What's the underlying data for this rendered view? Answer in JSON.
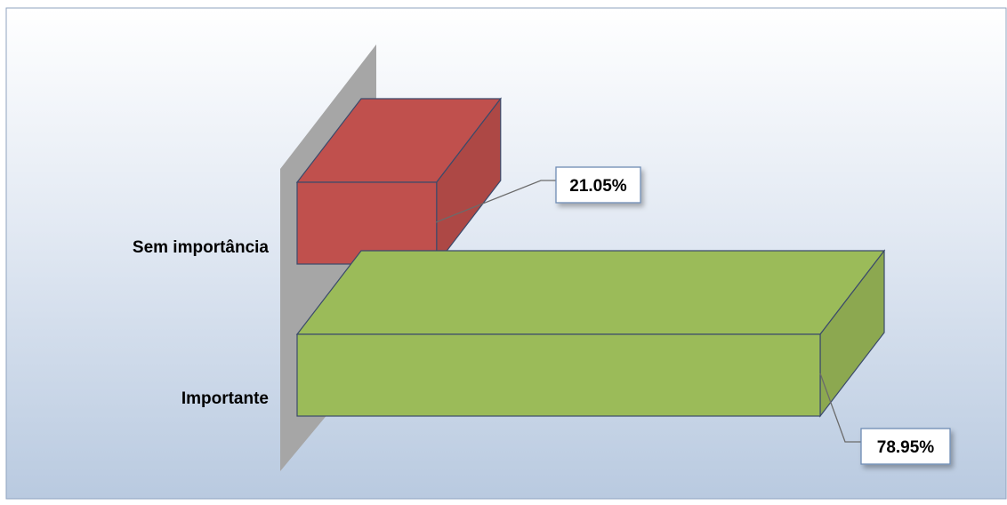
{
  "chart_data": {
    "type": "bar",
    "orientation": "horizontal",
    "style": "3d",
    "categories": [
      "Sem importância",
      "Importante"
    ],
    "values": [
      21.05,
      78.95
    ],
    "value_labels": [
      "21.05%",
      "78.95%"
    ],
    "xlim": [
      0,
      80
    ],
    "grid": false,
    "legend": "none",
    "colors": [
      "#c0504d",
      "#9bbb59"
    ]
  }
}
